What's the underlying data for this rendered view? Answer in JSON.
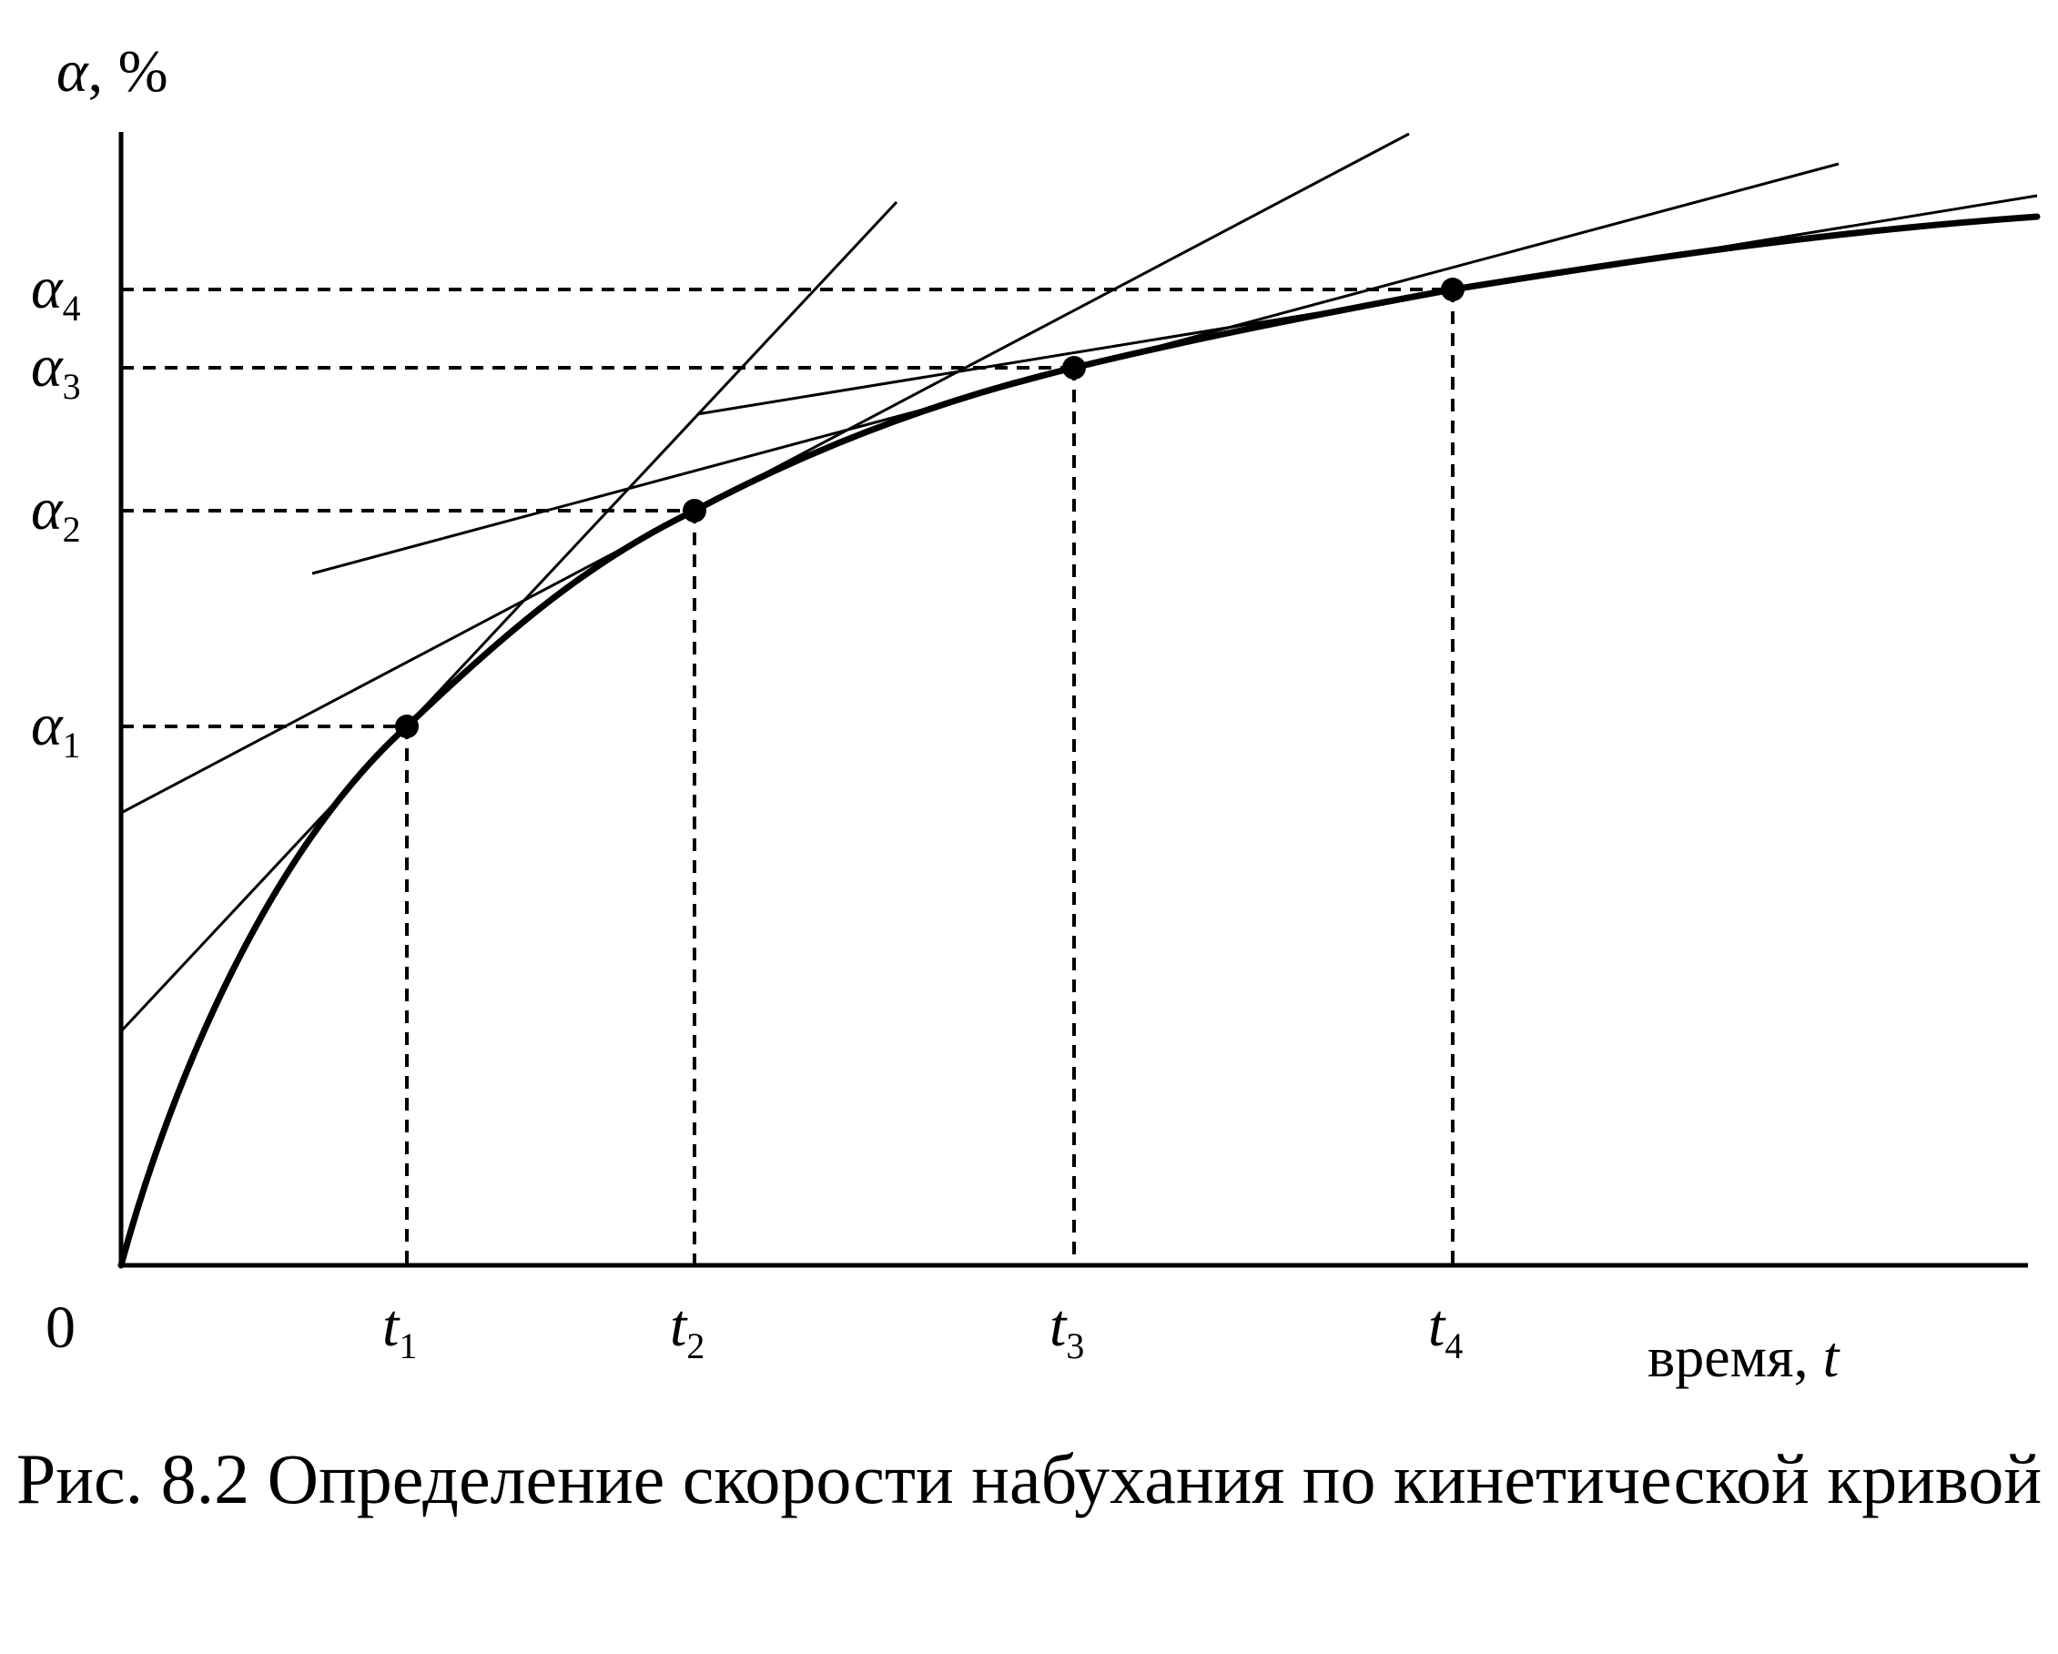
{
  "figure": {
    "caption": "Рис. 8.2  Определение  скорости набухания  по  кинетической  кривой",
    "y_axis_label": {
      "symbol": "α",
      "unit": ", %"
    },
    "x_axis_label": {
      "text": "время,",
      "symbol": "t"
    },
    "origin_label": "0",
    "alpha_labels": [
      {
        "symbol": "α",
        "sub": "1"
      },
      {
        "symbol": "α",
        "sub": "2"
      },
      {
        "symbol": "α",
        "sub": "3"
      },
      {
        "symbol": "α",
        "sub": "4"
      }
    ],
    "time_labels": [
      {
        "symbol": "t",
        "sub": "1"
      },
      {
        "symbol": "t",
        "sub": "2"
      },
      {
        "symbol": "t",
        "sub": "3"
      },
      {
        "symbol": "t",
        "sub": "4"
      }
    ],
    "colors": {
      "ink": "#000000",
      "background": "#ffffff"
    }
  }
}
